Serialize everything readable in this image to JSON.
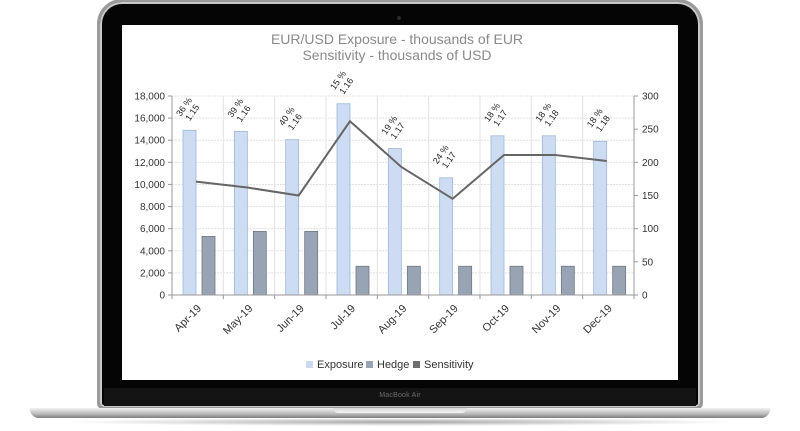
{
  "device": {
    "brand_label": "MacBook Air"
  },
  "chart": {
    "title_line1": "EUR/USD Exposure - thousands of EUR",
    "title_line2": "Sensitivity - thousands of USD",
    "legend": [
      {
        "label": "Exposure",
        "color": "#c9daf1"
      },
      {
        "label": "Hedge",
        "color": "#98a3b3"
      },
      {
        "label": "Sensitivity",
        "color": "#6e6e6e"
      }
    ],
    "colors": {
      "exposure_fill": "#cddcf2",
      "exposure_stroke": "#9fb7d9",
      "hedge_fill": "#98a3b3",
      "hedge_stroke": "#6f7886",
      "line": "#666666",
      "grid": "#e2e2e2",
      "axis": "#999999",
      "text": "#333333",
      "title": "#8a8a8a"
    }
  },
  "chart_data": {
    "type": "bar",
    "title": "EUR/USD Exposure - thousands of EUR / Sensitivity - thousands of USD",
    "categories": [
      "Apr-19",
      "May-19",
      "Jun-19",
      "Jul-19",
      "Aug-19",
      "Sep-19",
      "Oct-19",
      "Nov-19",
      "Dec-19"
    ],
    "series": [
      {
        "name": "Exposure",
        "type": "bar",
        "axis": "left",
        "values": [
          14900,
          14800,
          14050,
          17300,
          13250,
          10600,
          14400,
          14400,
          13900
        ]
      },
      {
        "name": "Hedge",
        "type": "bar",
        "axis": "left",
        "values": [
          5300,
          5750,
          5750,
          2600,
          2600,
          2600,
          2600,
          2600,
          2600
        ]
      },
      {
        "name": "Sensitivity",
        "type": "line",
        "axis": "right",
        "values": [
          171,
          162,
          150,
          262,
          193,
          145,
          211,
          211,
          202
        ]
      }
    ],
    "annotations": [
      {
        "pct": "36 %",
        "rate": "1.15"
      },
      {
        "pct": "39 %",
        "rate": "1.16"
      },
      {
        "pct": "40 %",
        "rate": "1.16"
      },
      {
        "pct": "15 %",
        "rate": "1.16"
      },
      {
        "pct": "19 %",
        "rate": "1.17"
      },
      {
        "pct": "24 %",
        "rate": "1.17"
      },
      {
        "pct": "18 %",
        "rate": "1.17"
      },
      {
        "pct": "18 %",
        "rate": "1.18"
      },
      {
        "pct": "18 %",
        "rate": "1.18"
      }
    ],
    "ylim_left": [
      0,
      18000
    ],
    "yticks_left": [
      "0",
      "2,000",
      "4,000",
      "6,000",
      "8,000",
      "10,000",
      "12,000",
      "14,000",
      "16,000",
      "18,000"
    ],
    "ylim_right": [
      0,
      300
    ],
    "yticks_right": [
      "0",
      "50",
      "100",
      "150",
      "200",
      "250",
      "300"
    ],
    "xlabel": "",
    "ylabel": "",
    "grid": true,
    "legend_position": "bottom"
  }
}
